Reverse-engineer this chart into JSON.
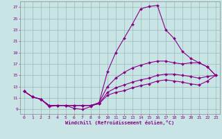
{
  "xlabel": "Windchill (Refroidissement éolien,°C)",
  "bg_color": "#c8e4e4",
  "line_color": "#880088",
  "grid_color": "#99bbbb",
  "xlim_min": -0.5,
  "xlim_max": 23.5,
  "ylim_min": 8.2,
  "ylim_max": 28.0,
  "xticks": [
    0,
    1,
    2,
    3,
    4,
    5,
    6,
    7,
    8,
    9,
    10,
    11,
    12,
    13,
    14,
    15,
    16,
    17,
    18,
    19,
    20,
    21,
    22,
    23
  ],
  "yticks": [
    9,
    11,
    13,
    15,
    17,
    19,
    21,
    23,
    25,
    27
  ],
  "lines": [
    {
      "x": [
        0,
        1,
        2,
        3,
        4,
        5,
        6,
        7,
        8,
        9,
        10,
        11,
        12,
        13,
        14,
        15,
        16,
        17,
        18,
        19,
        20,
        21,
        22,
        23
      ],
      "y": [
        12.2,
        11.2,
        10.8,
        9.5,
        9.7,
        9.7,
        9.2,
        9.0,
        9.5,
        10.2,
        15.6,
        19.0,
        21.5,
        24.0,
        26.7,
        27.1,
        27.3,
        23.0,
        21.5,
        19.2,
        18.0,
        17.2,
        16.5,
        15.0
      ]
    },
    {
      "x": [
        0,
        1,
        2,
        3,
        4,
        5,
        6,
        7,
        8,
        9,
        10,
        11,
        12,
        13,
        14,
        15,
        16,
        17,
        18,
        19,
        20,
        21,
        22,
        23
      ],
      "y": [
        12.2,
        11.2,
        10.8,
        9.7,
        9.7,
        9.7,
        9.7,
        9.7,
        9.7,
        10.2,
        13.0,
        14.5,
        15.5,
        16.3,
        16.8,
        17.2,
        17.5,
        17.5,
        17.2,
        17.0,
        17.2,
        17.2,
        16.5,
        15.0
      ]
    },
    {
      "x": [
        0,
        1,
        2,
        3,
        4,
        5,
        6,
        7,
        8,
        9,
        10,
        11,
        12,
        13,
        14,
        15,
        16,
        17,
        18,
        19,
        20,
        21,
        22,
        23
      ],
      "y": [
        12.2,
        11.2,
        10.8,
        9.7,
        9.7,
        9.7,
        9.7,
        9.7,
        9.7,
        10.0,
        12.0,
        12.8,
        13.3,
        13.8,
        14.2,
        14.5,
        15.0,
        15.2,
        15.2,
        15.0,
        14.8,
        14.5,
        14.8,
        15.0
      ]
    },
    {
      "x": [
        0,
        1,
        2,
        3,
        4,
        5,
        6,
        7,
        8,
        9,
        10,
        11,
        12,
        13,
        14,
        15,
        16,
        17,
        18,
        19,
        20,
        21,
        22,
        23
      ],
      "y": [
        12.2,
        11.2,
        10.8,
        9.7,
        9.7,
        9.7,
        9.7,
        9.7,
        9.7,
        10.0,
        11.5,
        12.0,
        12.3,
        12.8,
        13.2,
        13.5,
        14.0,
        14.2,
        14.0,
        13.8,
        13.5,
        13.3,
        14.0,
        15.0
      ]
    }
  ]
}
